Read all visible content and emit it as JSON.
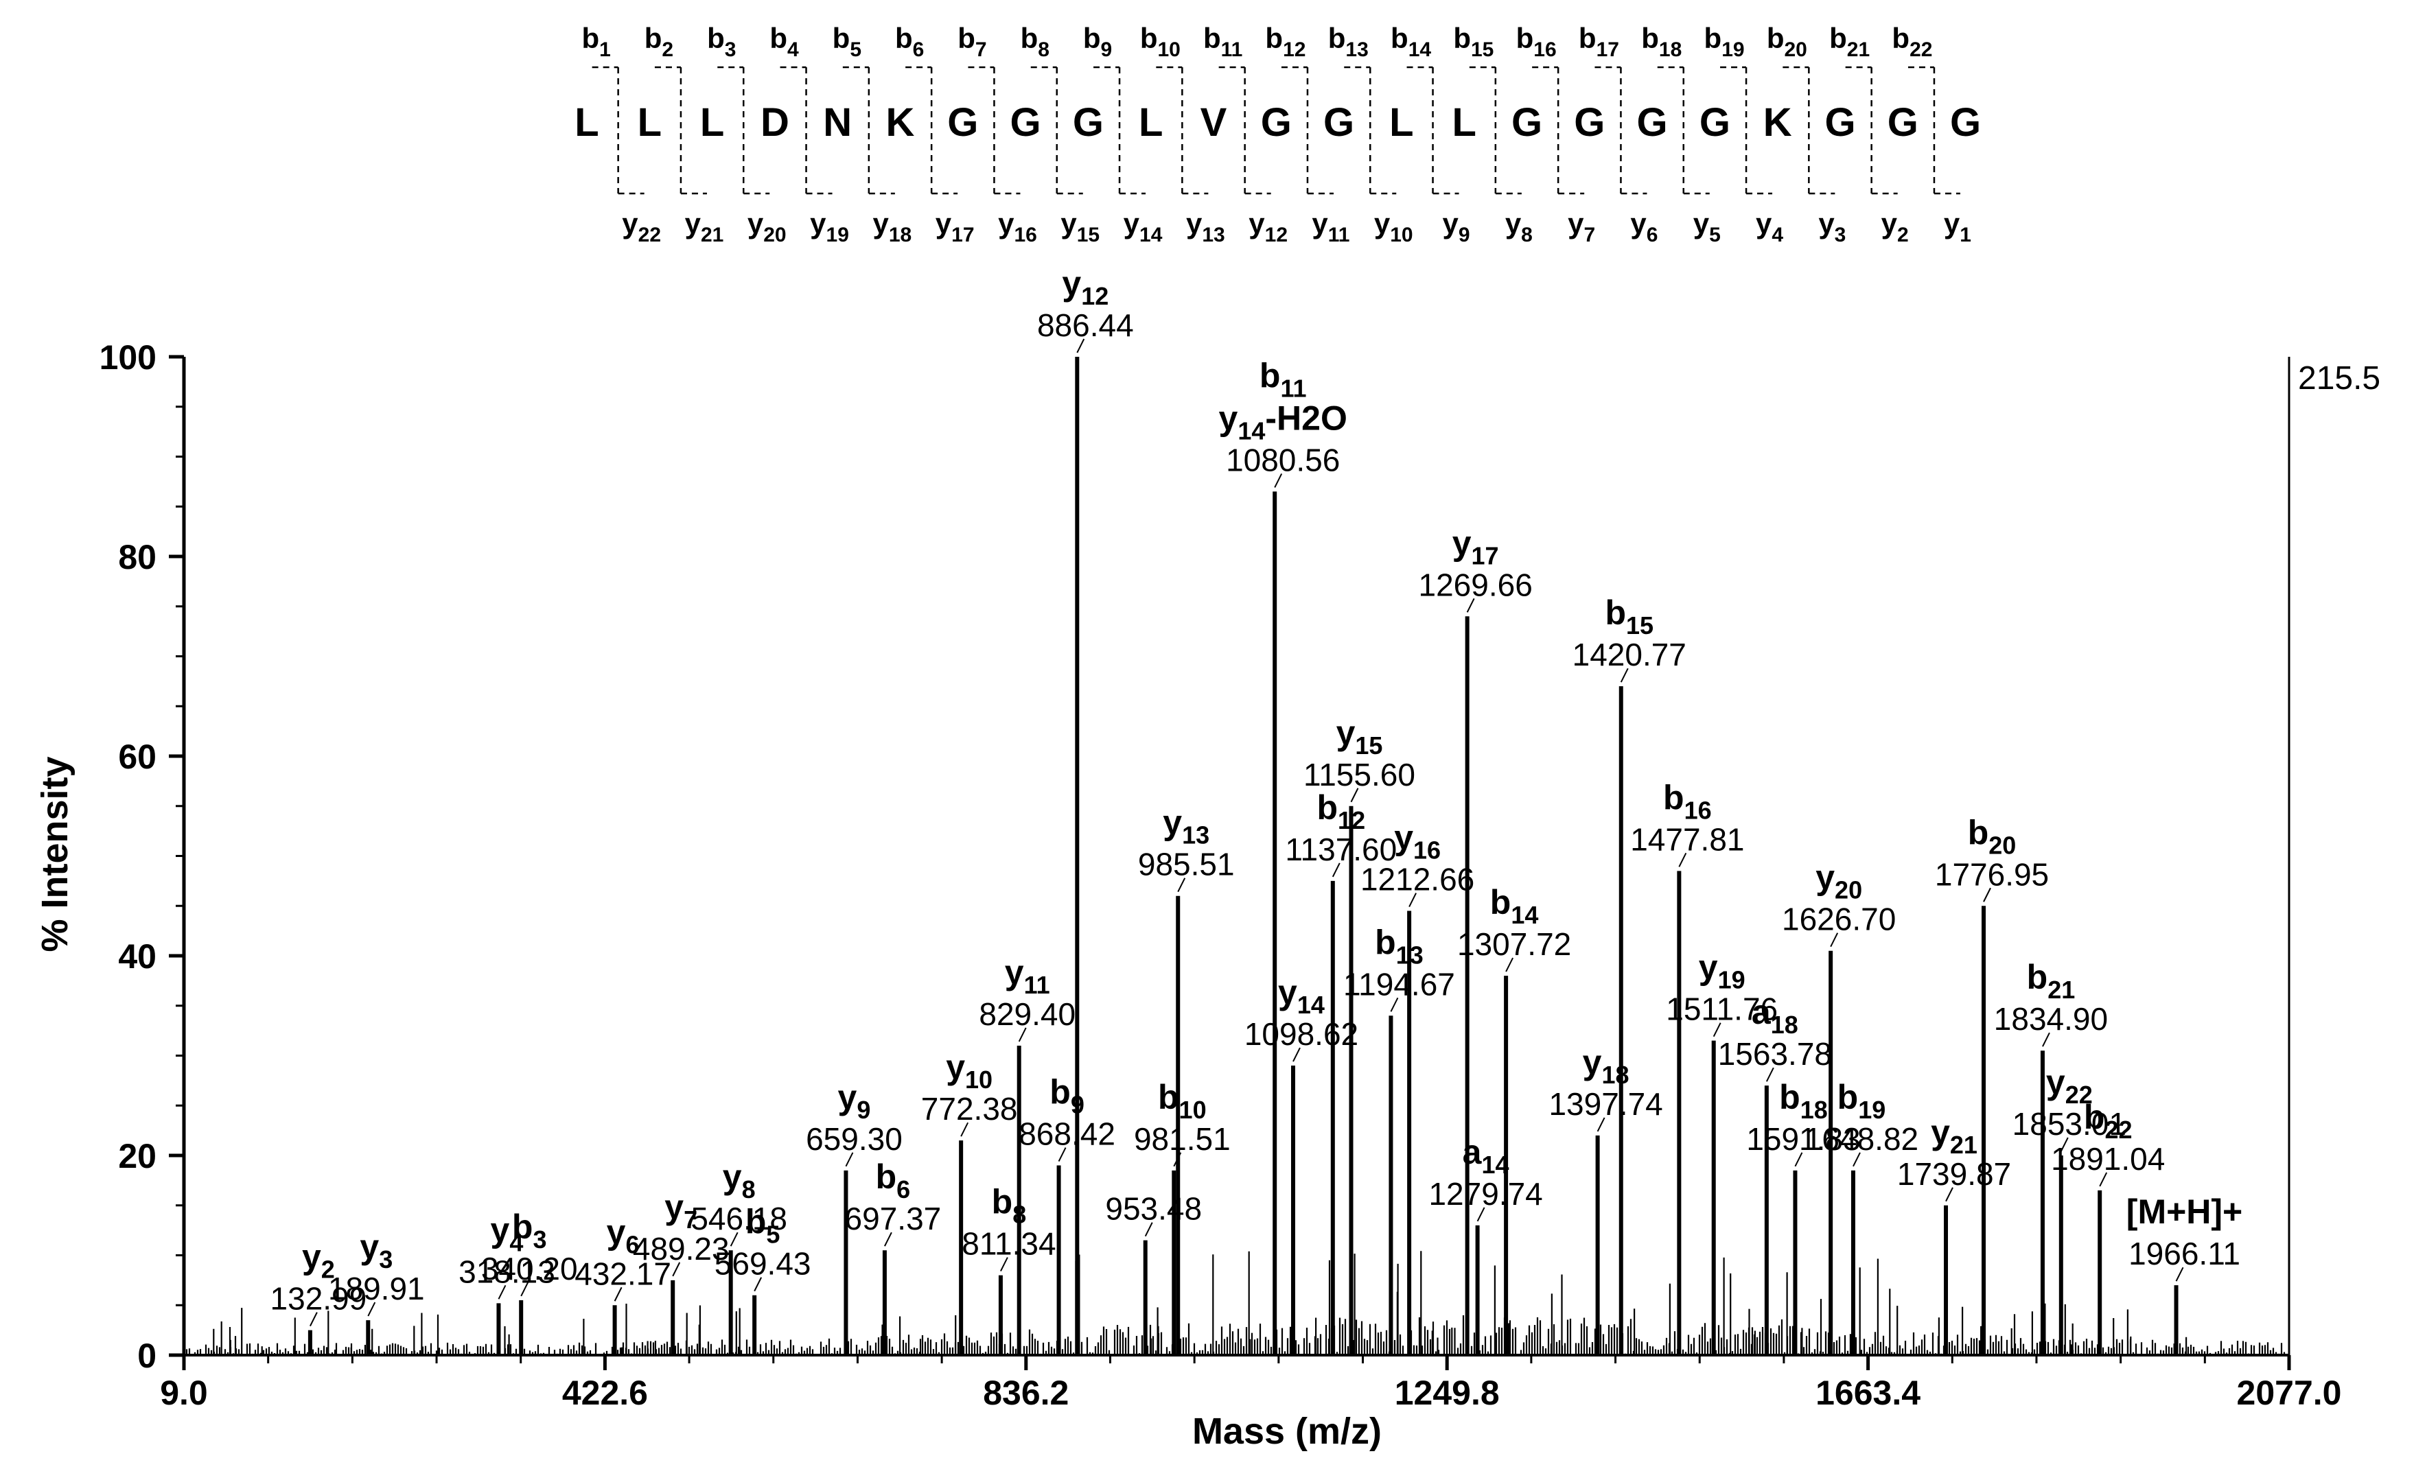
{
  "chart_data": {
    "type": "bar",
    "xlabel": "Mass (m/z)",
    "ylabel": "% Intensity",
    "xlim": [
      9.0,
      2077.0
    ],
    "ylim": [
      0,
      100
    ],
    "x_ticks": [
      "9.0",
      "422.6",
      "836.2",
      "1249.8",
      "1663.4",
      "2077.0"
    ],
    "x_tick_values": [
      9.0,
      422.6,
      836.2,
      1249.8,
      1663.4,
      2077.0
    ],
    "y_ticks": [
      "0",
      "20",
      "40",
      "60",
      "80",
      "100"
    ],
    "y_tick_values": [
      0,
      20,
      40,
      60,
      80,
      100
    ],
    "max_intensity": "215.5",
    "grid": false,
    "sequence": {
      "residues": [
        "L",
        "L",
        "L",
        "D",
        "N",
        "K",
        "G",
        "G",
        "G",
        "L",
        "V",
        "G",
        "G",
        "L",
        "L",
        "G",
        "G",
        "G",
        "G",
        "K",
        "G",
        "G",
        "G"
      ],
      "b_ions": [
        "b1",
        "b2",
        "b3",
        "b4",
        "b5",
        "b6",
        "b7",
        "b8",
        "b9",
        "b10",
        "b11",
        "b12",
        "b13",
        "b14",
        "b15",
        "b16",
        "b17",
        "b18",
        "b19",
        "b20",
        "b21",
        "b22"
      ],
      "y_ions": [
        "y22",
        "y21",
        "y20",
        "y19",
        "y18",
        "y17",
        "y16",
        "y15",
        "y14",
        "y13",
        "y12",
        "y11",
        "y10",
        "y9",
        "y8",
        "y7",
        "y6",
        "y5",
        "y4",
        "y3",
        "y2",
        "y1"
      ]
    },
    "peaks": [
      {
        "mz": 132.99,
        "label": "132.99",
        "ion": "y2",
        "intensity": 2.5
      },
      {
        "mz": 189.91,
        "label": "189.91",
        "ion": "y3",
        "intensity": 3.5
      },
      {
        "mz": 318.13,
        "label": "318.13",
        "ion": "y4",
        "intensity": 5.2
      },
      {
        "mz": 340.2,
        "label": "340.20",
        "ion": "b3",
        "intensity": 5.5
      },
      {
        "mz": 432.17,
        "label": "432.17",
        "ion": "y6",
        "intensity": 5.0
      },
      {
        "mz": 489.23,
        "label": "489.23",
        "ion": "y7",
        "intensity": 7.5
      },
      {
        "mz": 546.18,
        "label": "546.18",
        "ion": "y8",
        "intensity": 10.5
      },
      {
        "mz": 569.43,
        "label": "569.43",
        "ion": "b5",
        "intensity": 6.0
      },
      {
        "mz": 659.3,
        "label": "659.30",
        "ion": "y9",
        "intensity": 18.5
      },
      {
        "mz": 697.37,
        "label": "697.37",
        "ion": "b6",
        "intensity": 10.5
      },
      {
        "mz": 772.38,
        "label": "772.38",
        "ion": "y10",
        "intensity": 21.5
      },
      {
        "mz": 811.34,
        "label": "811.34",
        "ion": "b8",
        "intensity": 8.0
      },
      {
        "mz": 829.4,
        "label": "829.40",
        "ion": "y11",
        "intensity": 31.0
      },
      {
        "mz": 868.42,
        "label": "868.42",
        "ion": "b9",
        "intensity": 19.0
      },
      {
        "mz": 886.44,
        "label": "886.44",
        "ion": "y12",
        "intensity": 100.0
      },
      {
        "mz": 953.48,
        "label": "953.48",
        "ion": "",
        "intensity": 11.5
      },
      {
        "mz": 981.51,
        "label": "981.51",
        "ion": "b10",
        "intensity": 18.5
      },
      {
        "mz": 985.51,
        "label": "985.51",
        "ion": "y13",
        "intensity": 46.0
      },
      {
        "mz": 1080.56,
        "label": "1080.56",
        "ion": "b11 / y14-H2O",
        "intensity": 86.5
      },
      {
        "mz": 1098.62,
        "label": "1098.62",
        "ion": "y14",
        "intensity": 29.0
      },
      {
        "mz": 1137.6,
        "label": "1137.60",
        "ion": "b12",
        "intensity": 47.5
      },
      {
        "mz": 1155.6,
        "label": "1155.60",
        "ion": "y15",
        "intensity": 55.0
      },
      {
        "mz": 1194.67,
        "label": "1194.67",
        "ion": "b13",
        "intensity": 34.0
      },
      {
        "mz": 1212.66,
        "label": "1212.66",
        "ion": "y16",
        "intensity": 44.5
      },
      {
        "mz": 1269.66,
        "label": "1269.66",
        "ion": "y17",
        "intensity": 74.0
      },
      {
        "mz": 1279.74,
        "label": "1279.74",
        "ion": "a14",
        "intensity": 13.0
      },
      {
        "mz": 1307.72,
        "label": "1307.72",
        "ion": "b14",
        "intensity": 38.0
      },
      {
        "mz": 1397.74,
        "label": "1397.74",
        "ion": "y18",
        "intensity": 22.0
      },
      {
        "mz": 1420.77,
        "label": "1420.77",
        "ion": "b15",
        "intensity": 67.0
      },
      {
        "mz": 1477.81,
        "label": "1477.81",
        "ion": "b16",
        "intensity": 48.5
      },
      {
        "mz": 1511.76,
        "label": "1511.76",
        "ion": "y19",
        "intensity": 31.5
      },
      {
        "mz": 1563.78,
        "label": "1563.78",
        "ion": "a18",
        "intensity": 27.0
      },
      {
        "mz": 1591.83,
        "label": "1591.83",
        "ion": "b18",
        "intensity": 18.5
      },
      {
        "mz": 1626.7,
        "label": "1626.70",
        "ion": "y20",
        "intensity": 40.5
      },
      {
        "mz": 1648.82,
        "label": "1648.82",
        "ion": "b19",
        "intensity": 18.5
      },
      {
        "mz": 1739.87,
        "label": "1739.87",
        "ion": "y21",
        "intensity": 15.0
      },
      {
        "mz": 1776.95,
        "label": "1776.95",
        "ion": "b20",
        "intensity": 45.0
      },
      {
        "mz": 1834.9,
        "label": "1834.90",
        "ion": "b21",
        "intensity": 30.5
      },
      {
        "mz": 1853.01,
        "label": "1853.01",
        "ion": "y22",
        "intensity": 20.0
      },
      {
        "mz": 1891.04,
        "label": "1891.04",
        "ion": "b22",
        "intensity": 16.5
      },
      {
        "mz": 1966.11,
        "label": "1966.11",
        "ion": "[M+H]+",
        "intensity": 7.0
      }
    ]
  }
}
